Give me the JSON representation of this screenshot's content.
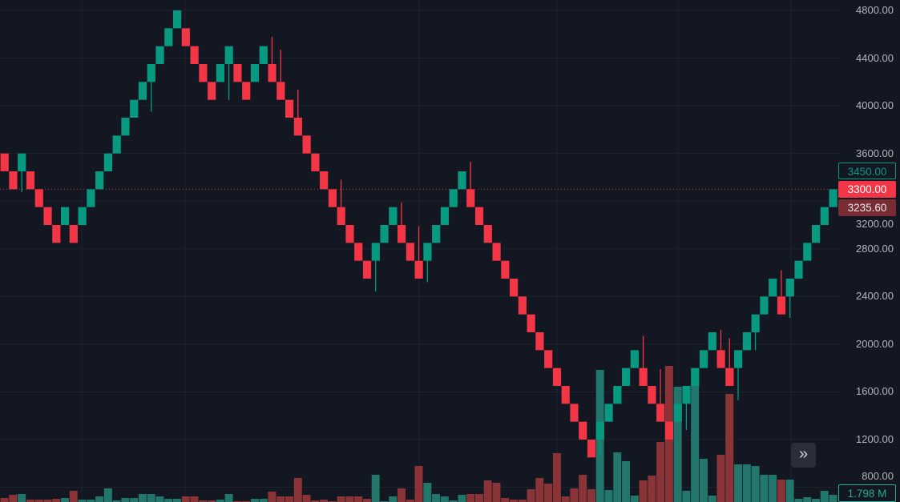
{
  "chart_data": {
    "type": "renko",
    "box_size": 150,
    "colors": {
      "up": "#089981",
      "down": "#f23645",
      "volume_up": "#22766b",
      "volume_down": "#8a3438",
      "background": "#131722",
      "grid": "#1e222d"
    },
    "ylim": [
      800,
      4800
    ],
    "y_ticks": [
      "4800.00",
      "4400.00",
      "4000.00",
      "3600.00",
      "3200.00",
      "2800.00",
      "2400.00",
      "2000.00",
      "1600.00",
      "1200.00",
      "800.00"
    ],
    "grid": true,
    "bricks": [
      [
        3600,
        3450
      ],
      [
        3450,
        3300
      ],
      [
        3450,
        3600
      ],
      [
        3450,
        3300
      ],
      [
        3300,
        3150
      ],
      [
        3150,
        3000
      ],
      [
        3000,
        2850
      ],
      [
        3000,
        3150
      ],
      [
        3000,
        2850
      ],
      [
        3000,
        3150
      ],
      [
        3150,
        3300
      ],
      [
        3300,
        3450
      ],
      [
        3450,
        3600
      ],
      [
        3600,
        3750
      ],
      [
        3750,
        3900
      ],
      [
        3900,
        4050
      ],
      [
        4050,
        4200
      ],
      [
        4200,
        4350
      ],
      [
        4350,
        4500
      ],
      [
        4500,
        4650
      ],
      [
        4650,
        4800
      ],
      [
        4650,
        4500
      ],
      [
        4500,
        4350
      ],
      [
        4350,
        4200
      ],
      [
        4200,
        4050
      ],
      [
        4200,
        4350
      ],
      [
        4350,
        4500
      ],
      [
        4350,
        4200
      ],
      [
        4200,
        4050
      ],
      [
        4200,
        4350
      ],
      [
        4350,
        4500
      ],
      [
        4350,
        4200
      ],
      [
        4200,
        4050
      ],
      [
        4050,
        3900
      ],
      [
        3900,
        3750
      ],
      [
        3750,
        3600
      ],
      [
        3600,
        3450
      ],
      [
        3450,
        3300
      ],
      [
        3300,
        3150
      ],
      [
        3150,
        3000
      ],
      [
        3000,
        2850
      ],
      [
        2850,
        2700
      ],
      [
        2700,
        2550
      ],
      [
        2700,
        2850
      ],
      [
        2850,
        3000
      ],
      [
        3000,
        3150
      ],
      [
        3000,
        2850
      ],
      [
        2850,
        2700
      ],
      [
        2700,
        2550
      ],
      [
        2700,
        2850
      ],
      [
        2850,
        3000
      ],
      [
        3000,
        3150
      ],
      [
        3150,
        3300
      ],
      [
        3300,
        3450
      ],
      [
        3300,
        3150
      ],
      [
        3150,
        3000
      ],
      [
        3000,
        2850
      ],
      [
        2850,
        2700
      ],
      [
        2700,
        2550
      ],
      [
        2550,
        2400
      ],
      [
        2400,
        2250
      ],
      [
        2250,
        2100
      ],
      [
        2100,
        1950
      ],
      [
        1950,
        1800
      ],
      [
        1800,
        1650
      ],
      [
        1650,
        1500
      ],
      [
        1500,
        1350
      ],
      [
        1350,
        1200
      ],
      [
        1200,
        1050
      ],
      [
        1200,
        1350
      ],
      [
        1350,
        1500
      ],
      [
        1500,
        1650
      ],
      [
        1650,
        1800
      ],
      [
        1800,
        1950
      ],
      [
        1800,
        1650
      ],
      [
        1650,
        1500
      ],
      [
        1500,
        1350
      ],
      [
        1350,
        1200
      ],
      [
        1350,
        1500
      ],
      [
        1500,
        1650
      ],
      [
        1650,
        1800
      ],
      [
        1800,
        1950
      ],
      [
        1950,
        2100
      ],
      [
        1950,
        1800
      ],
      [
        1800,
        1650
      ],
      [
        1800,
        1950
      ],
      [
        1950,
        2100
      ],
      [
        2100,
        2250
      ],
      [
        2250,
        2400
      ],
      [
        2400,
        2550
      ],
      [
        2400,
        2250
      ],
      [
        2400,
        2550
      ],
      [
        2550,
        2700
      ],
      [
        2700,
        2850
      ],
      [
        2850,
        3000
      ],
      [
        3000,
        3150
      ],
      [
        3150,
        3300
      ]
    ],
    "wicks": [
      {
        "brick": 3,
        "low": 3275
      },
      {
        "brick": 18,
        "low": 3950
      },
      {
        "brick": 27,
        "low": 4050
      },
      {
        "brick": 32,
        "high": 4580
      },
      {
        "brick": 33,
        "high": 4470
      },
      {
        "brick": 35,
        "high": 4135
      },
      {
        "brick": 40,
        "high": 3380
      },
      {
        "brick": 44,
        "low": 2440
      },
      {
        "brick": 47,
        "high": 3190
      },
      {
        "brick": 49,
        "high": 2990
      },
      {
        "brick": 50,
        "low": 2520
      },
      {
        "brick": 55,
        "high": 3530
      },
      {
        "brick": 70,
        "low": 1060
      },
      {
        "brick": 75,
        "high": 2070
      },
      {
        "brick": 77,
        "high": 1790
      },
      {
        "brick": 80,
        "low": 1280
      },
      {
        "brick": 84,
        "high": 2120
      },
      {
        "brick": 85,
        "high": 2050
      },
      {
        "brick": 86,
        "low": 1530
      },
      {
        "brick": 88,
        "low": 1950
      },
      {
        "brick": 91,
        "high": 2620
      },
      {
        "brick": 92,
        "low": 2220
      }
    ],
    "volume_unit": "M",
    "volumes": [
      1.0,
      1.8,
      2.0,
      0.6,
      0.6,
      0.6,
      0.8,
      1.0,
      2.8,
      0.6,
      0.6,
      1.4,
      3.4,
      0.4,
      1.0,
      1.0,
      2.0,
      2.0,
      1.4,
      0.8,
      0.8,
      1.4,
      1.4,
      0.4,
      0.4,
      0.6,
      2.0,
      0.2,
      0.2,
      0.8,
      0.8,
      2.6,
      1.4,
      1.4,
      6.0,
      1.8,
      0.4,
      0.6,
      0.2,
      1.4,
      1.4,
      1.4,
      0.8,
      6.8,
      0.2,
      1.4,
      3.4,
      0.6,
      9.0,
      4.8,
      2.0,
      1.4,
      0.4,
      1.8,
      2.0,
      2.0,
      5.4,
      4.8,
      1.0,
      0.6,
      0.6,
      3.2,
      6.0,
      4.6,
      12.2,
      1.4,
      3.4,
      6.8,
      3.2,
      33.0,
      3.0,
      12.4,
      10.2,
      1.6,
      5.4,
      6.6,
      15.0,
      34.0,
      28.8,
      2.8,
      29.6,
      10.8,
      1.6,
      11.8,
      27.0,
      9.4,
      9.4,
      9.0,
      6.8,
      6.8,
      5.6,
      5.6,
      0.8,
      1.2,
      0.8,
      2.8,
      1.798
    ]
  },
  "price_tags": {
    "next_box": "3450.00",
    "last_brick": "3300.00",
    "last_price": "3235.60"
  },
  "volume_tag": "1.798 M",
  "scroll_button": "»"
}
